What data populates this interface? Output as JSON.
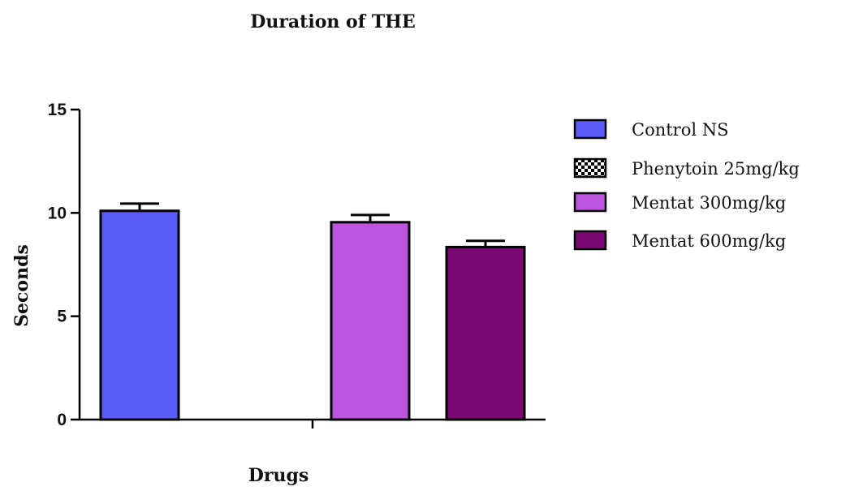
{
  "chart_data": {
    "type": "bar",
    "title": "Duration of THE",
    "xlabel": "Drugs",
    "ylabel": "Seconds",
    "ylim": [
      0,
      15
    ],
    "yticks": [
      "0",
      "5",
      "10",
      "15"
    ],
    "grid": false,
    "legend_position": "right",
    "series": [
      {
        "name": "Control NS",
        "value": 10.1,
        "error": 0.35,
        "color": "#5B5BF7",
        "pattern": "solid"
      },
      {
        "name": "Phenytoin 25mg/kg",
        "value": 0,
        "error": 0,
        "color": "#ffffff",
        "pattern": "checker"
      },
      {
        "name": "Mentat 300mg/kg",
        "value": 9.55,
        "error": 0.35,
        "color": "#BB55DD",
        "pattern": "solid"
      },
      {
        "name": "Mentat 600mg/kg",
        "value": 8.35,
        "error": 0.3,
        "color": "#7A0A72",
        "pattern": "solid"
      }
    ]
  }
}
